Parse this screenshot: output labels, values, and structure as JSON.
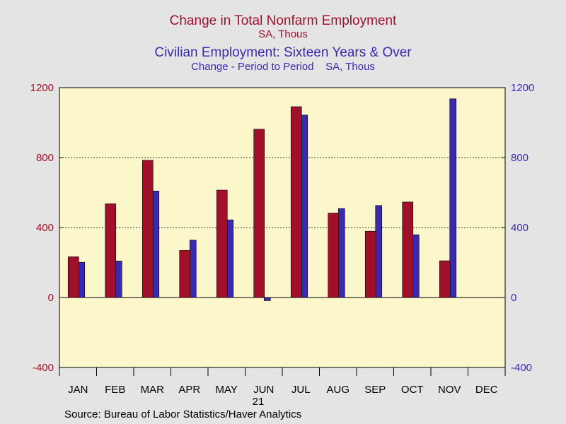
{
  "titles": {
    "series1_title": "Change in Total Nonfarm Employment",
    "series1_sub": "SA, Thous",
    "series2_title": "Civilian Employment: Sixteen Years & Over",
    "series2_sub": "Change - Period to Period    SA, Thous"
  },
  "source": "Source:  Bureau of Labor Statistics/Haver Analytics",
  "colors": {
    "background": "#e4e4e4",
    "plot_bg": "#fbf7cb",
    "series1": "#a0102a",
    "series2": "#3a2ab0"
  },
  "chart_data": {
    "type": "bar",
    "categories": [
      "JAN",
      "FEB",
      "MAR",
      "APR",
      "MAY",
      "JUN",
      "JUL",
      "AUG",
      "SEP",
      "OCT",
      "NOV",
      "DEC"
    ],
    "year_label": "21",
    "series": [
      {
        "name": "Change in Total Nonfarm Employment",
        "values": [
          233,
          536,
          785,
          269,
          614,
          962,
          1091,
          483,
          379,
          546,
          210,
          null
        ]
      },
      {
        "name": "Civilian Employment: Sixteen Years & Over",
        "values": [
          201,
          209,
          609,
          328,
          444,
          -18,
          1043,
          509,
          526,
          359,
          1136,
          null
        ]
      }
    ],
    "ylim": [
      -400,
      1200
    ],
    "yticks": [
      -400,
      0,
      400,
      800,
      1200
    ],
    "gridlines": [
      400,
      800
    ],
    "dual_axis": true
  }
}
